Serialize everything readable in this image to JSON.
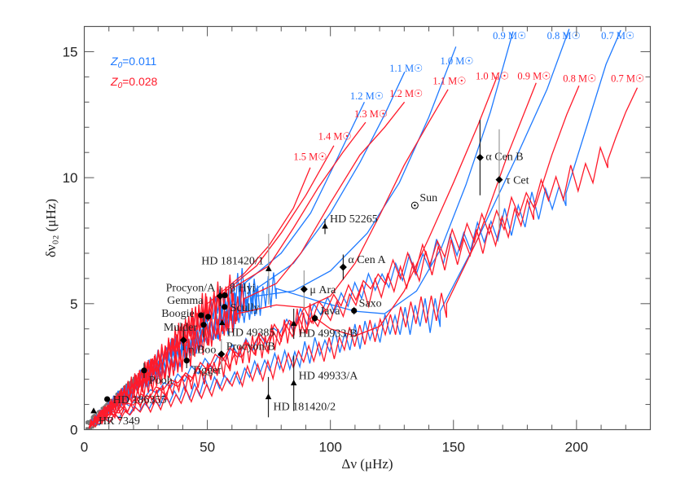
{
  "chart_data": {
    "type": "scatter",
    "xlabel": "Δν (μHz)",
    "ylabel": "δν₀₂ (μHz)",
    "xlim": [
      0,
      230
    ],
    "ylim": [
      0,
      16
    ],
    "x_ticks": [
      0,
      50,
      100,
      150,
      200
    ],
    "y_ticks": [
      0,
      5,
      10,
      15
    ],
    "grid": false,
    "legend_placement": "top-left",
    "legend": [
      {
        "label_main": "Z",
        "label_sub": "0",
        "label_rest": "=0.011",
        "color": "#1f7aff"
      },
      {
        "label_main": "Z",
        "label_sub": "0",
        "label_rest": "=0.028",
        "color": "#ff1a2a"
      }
    ],
    "tracks": [
      {
        "set": 0,
        "mass": "0.7 M☉",
        "label_at": [
          210,
          15.5
        ],
        "points": [
          [
            195.7,
            9.38
          ],
          [
            205,
            12.3
          ],
          [
            212,
            14.5
          ],
          [
            218,
            15.85
          ]
        ]
      },
      {
        "set": 0,
        "mass": "0.8 M☉",
        "label_at": [
          188,
          15.5
        ],
        "points": [
          [
            144.6,
            4.7
          ],
          [
            160,
            7.6
          ],
          [
            175,
            10.7
          ],
          [
            188,
            13.5
          ],
          [
            197,
            15.9
          ]
        ]
      },
      {
        "set": 0,
        "mass": "0.9 M☉",
        "label_at": [
          166,
          15.5
        ],
        "points": [
          [
            78,
            5.6
          ],
          [
            95,
            5.1
          ],
          [
            110,
            4.7
          ],
          [
            122,
            4.6
          ],
          [
            135,
            5.5
          ],
          [
            145,
            7.2
          ],
          [
            155,
            9.7
          ],
          [
            165,
            12.6
          ],
          [
            174.2,
            15.8
          ]
        ]
      },
      {
        "set": 0,
        "mass": "1.0 M☉",
        "label_at": [
          144.6,
          14.5
        ],
        "points": [
          [
            70,
            5.3
          ],
          [
            85,
            5.5
          ],
          [
            100,
            6.3
          ],
          [
            115,
            7.8
          ],
          [
            128,
            9.8
          ],
          [
            140,
            12.4
          ],
          [
            151,
            15.2
          ]
        ]
      },
      {
        "set": 0,
        "mass": "1.1 M☉",
        "label_at": [
          124,
          14.2
        ],
        "points": [
          [
            70,
            5.6
          ],
          [
            85,
            6.6
          ],
          [
            100,
            8.6
          ],
          [
            112,
            10.6
          ],
          [
            122,
            12.5
          ],
          [
            130.2,
            14.2
          ]
        ]
      },
      {
        "set": 0,
        "mass": "1.2 M☉",
        "label_at": [
          108,
          13.1
        ],
        "points": [
          [
            65,
            5.8
          ],
          [
            80,
            7.0
          ],
          [
            92,
            8.6
          ],
          [
            102,
            10.6
          ],
          [
            113.8,
            13.0
          ]
        ]
      },
      {
        "set": 1,
        "mass": "0.7 M☉",
        "label_at": [
          214,
          13.8
        ],
        "points": [
          [
            212.7,
            10.69
          ],
          [
            216,
            11.6
          ],
          [
            220,
            12.6
          ],
          [
            224.7,
            13.57
          ]
        ]
      },
      {
        "set": 1,
        "mass": "0.8 M☉",
        "label_at": [
          194.5,
          13.8
        ],
        "points": [
          [
            182.6,
            8.66
          ],
          [
            190,
            10.9
          ],
          [
            196,
            12.5
          ],
          [
            201,
            13.65
          ]
        ]
      },
      {
        "set": 1,
        "mass": "0.9 M☉",
        "label_at": [
          176,
          13.9
        ],
        "points": [
          [
            147.2,
            5.0
          ],
          [
            160,
            7.6
          ],
          [
            172,
            10.9
          ],
          [
            183.6,
            13.76
          ]
        ]
      },
      {
        "set": 1,
        "mass": "1.0 M☉",
        "label_at": [
          159,
          13.9
        ],
        "points": [
          [
            93,
            4.5
          ],
          [
            100,
            4.0
          ],
          [
            110,
            3.72
          ],
          [
            120,
            4.1
          ],
          [
            130,
            5.5
          ],
          [
            140,
            7.6
          ],
          [
            150,
            9.8
          ],
          [
            160,
            12.1
          ],
          [
            167.7,
            14.0
          ]
        ]
      },
      {
        "set": 1,
        "mass": "1.1 M☉",
        "label_at": [
          141.6,
          13.7
        ],
        "points": [
          [
            62,
            4.6
          ],
          [
            78,
            4.95
          ],
          [
            90,
            4.84
          ],
          [
            100,
            5.3
          ],
          [
            110,
            6.6
          ],
          [
            120,
            8.5
          ],
          [
            130,
            10.5
          ],
          [
            140,
            12.2
          ],
          [
            147.8,
            13.5
          ]
        ]
      },
      {
        "set": 1,
        "mass": "1.2 M☉",
        "label_at": [
          124,
          13.2
        ],
        "points": [
          [
            65,
            5.2
          ],
          [
            78,
            5.8
          ],
          [
            88,
            7.0
          ],
          [
            100,
            9.0
          ],
          [
            112,
            10.9
          ],
          [
            122,
            12.0
          ],
          [
            130.1,
            13.0
          ]
        ]
      },
      {
        "set": 1,
        "mass": "1.3 M☉",
        "label_at": [
          109.7,
          12.4
        ],
        "points": [
          [
            60,
            5.6
          ],
          [
            75,
            6.5
          ],
          [
            85,
            8.0
          ],
          [
            95,
            9.6
          ],
          [
            105,
            11.0
          ],
          [
            114.3,
            12.2
          ]
        ]
      },
      {
        "set": 1,
        "mass": "1.4 M☉",
        "label_at": [
          95,
          11.5
        ],
        "points": [
          [
            55,
            5.3
          ],
          [
            70,
            6.5
          ],
          [
            80,
            7.8
          ],
          [
            90,
            9.3
          ],
          [
            101.4,
            11.27
          ]
        ]
      },
      {
        "set": 1,
        "mass": "1.5 M☉",
        "label_at": [
          85,
          10.7
        ],
        "points": [
          [
            50,
            5.0
          ],
          [
            65,
            6.2
          ],
          [
            75,
            7.3
          ],
          [
            85,
            8.8
          ],
          [
            91.8,
            10.4
          ]
        ]
      }
    ],
    "stars": [
      {
        "name": "HR 7349",
        "x": 3.8,
        "y": 0.73,
        "marker": "triangle",
        "label": "right-below"
      },
      {
        "name": "HD 186355",
        "x": 9.3,
        "y": 1.21,
        "marker": "circle",
        "label": "right"
      },
      {
        "name": "Pooh",
        "x": 24.3,
        "y": 2.35,
        "marker": "circle",
        "yerr": 0.3,
        "label": "right-below"
      },
      {
        "name": "Tigger",
        "x": 41.6,
        "y": 2.74,
        "marker": "circle",
        "yerr": 0.3,
        "label": "right-below"
      },
      {
        "name": "η Boo",
        "x": 40.3,
        "y": 3.55,
        "marker": "diamond",
        "yerr": 0.4,
        "label": "right-below"
      },
      {
        "name": "Procyon/B",
        "x": 55.7,
        "y": 3.0,
        "marker": "diamond",
        "yerr": 0.6,
        "errcolor": "#999",
        "label": "right-above"
      },
      {
        "name": "Mulder",
        "x": 48.5,
        "y": 4.16,
        "marker": "circle",
        "yerr": 0.5,
        "label": "left"
      },
      {
        "name": "Boogie",
        "x": 47.4,
        "y": 4.54,
        "marker": "circle",
        "label": "left"
      },
      {
        "name": "Gemma",
        "x": 50.3,
        "y": 4.48,
        "marker": "circle",
        "label": "left-above"
      },
      {
        "name": "HD 49385",
        "x": 56.0,
        "y": 4.23,
        "marker": "triangle",
        "label": "right-below"
      },
      {
        "name": "Scully",
        "x": 57.0,
        "y": 4.87,
        "marker": "circle",
        "label": "right"
      },
      {
        "name": "Procyon/A",
        "x": 55.2,
        "y": 5.3,
        "marker": "diamond",
        "yerr": 0.4,
        "label": "left-above"
      },
      {
        "name": "β Hyi",
        "x": 57.1,
        "y": 5.33,
        "marker": "circle",
        "label": "right-above"
      },
      {
        "name": "HD 181420/1",
        "x": 74.9,
        "y": 6.37,
        "marker": "triangle",
        "yerr": 1.4,
        "errcolor": "#999",
        "label": "left-above"
      },
      {
        "name": "μ Ara",
        "x": 89.3,
        "y": 5.57,
        "marker": "diamond",
        "yerr": 0.75,
        "errcolor": "#999",
        "label": "right"
      },
      {
        "name": "HD 52265",
        "x": 97.8,
        "y": 8.06,
        "marker": "triangle",
        "yerr": 0.3,
        "label": "right-above"
      },
      {
        "name": "α Cen A",
        "x": 105.2,
        "y": 6.45,
        "marker": "diamond",
        "yerr": 0.5,
        "label": "right-above"
      },
      {
        "name": "Java",
        "x": 93.7,
        "y": 4.42,
        "marker": "circle",
        "yerr": 0.15,
        "label": "right-above"
      },
      {
        "name": "Saxo",
        "x": 109.6,
        "y": 4.72,
        "marker": "circle",
        "yerr": 0.15,
        "label": "right-above"
      },
      {
        "name": "HD 49933/B",
        "x": 85.1,
        "y": 4.2,
        "marker": "triangle",
        "yerr": 0.6,
        "label": "right-below"
      },
      {
        "name": "HD 49933/A",
        "x": 85.1,
        "y": 1.84,
        "marker": "triangle",
        "yerr": 1.1,
        "label": "right-above"
      },
      {
        "name": "HD 181420/2",
        "x": 74.8,
        "y": 1.29,
        "marker": "triangle",
        "yerr": 0.8,
        "label": "right-below"
      },
      {
        "name": "Sun",
        "x": 134.3,
        "y": 8.9,
        "marker": "sun",
        "label": "right-above"
      },
      {
        "name": "α Cen B",
        "x": 160.8,
        "y": 10.8,
        "marker": "diamond",
        "yerr": 1.5,
        "label": "right"
      },
      {
        "name": "τ Cet",
        "x": 168.6,
        "y": 9.92,
        "marker": "diamond",
        "yerr": 2.0,
        "errcolor": "#999",
        "label": "right-above"
      }
    ]
  }
}
